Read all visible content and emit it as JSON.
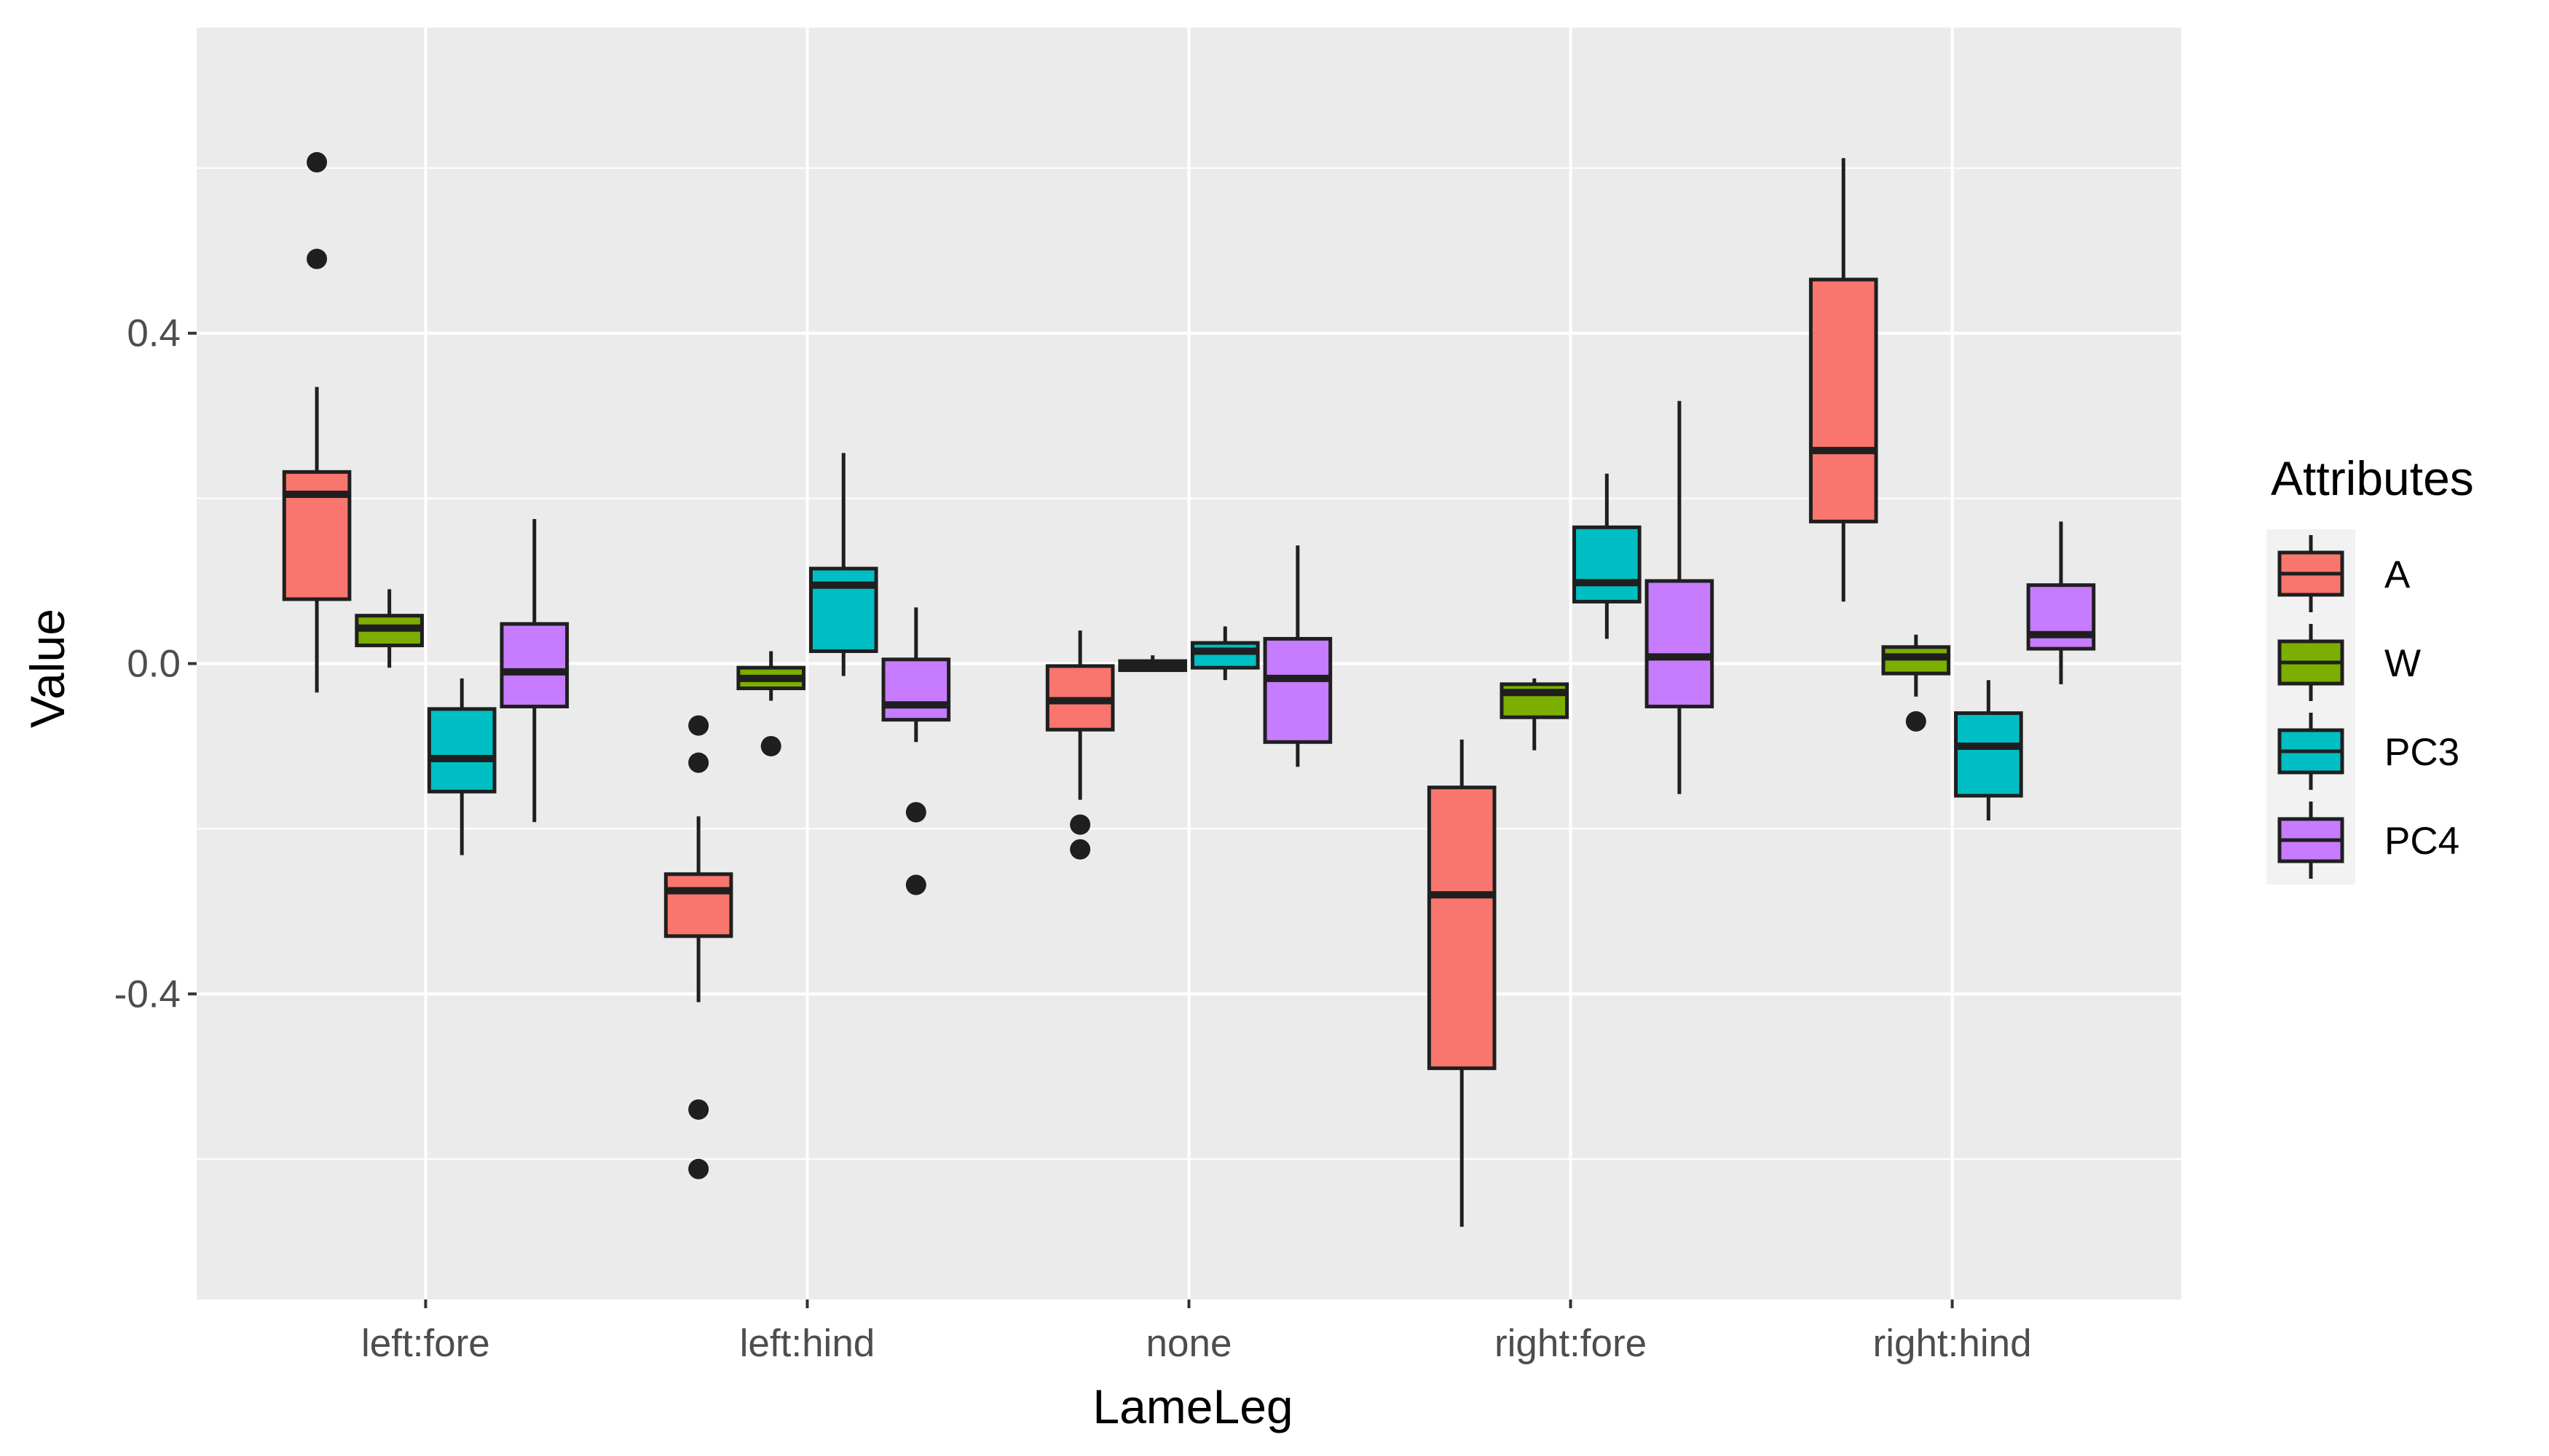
{
  "chart_data": {
    "type": "boxplot",
    "xlabel": "LameLeg",
    "ylabel": "Value",
    "categories": [
      "left:fore",
      "left:hind",
      "none",
      "right:fore",
      "right:hind"
    ],
    "y_ticks": [
      -0.4,
      0.0,
      0.4
    ],
    "y_tick_labels": [
      "-0.4",
      "0.0",
      "0.4"
    ],
    "ylim": [
      -0.77,
      0.77
    ],
    "grid": true,
    "legend": {
      "title": "Attributes",
      "position": "right",
      "entries": [
        "A",
        "W",
        "PC3",
        "PC4"
      ]
    },
    "series": [
      {
        "name": "A",
        "color": "#F8766D",
        "boxes": [
          {
            "category": "left:fore",
            "q1": 0.078,
            "median": 0.205,
            "q3": 0.232,
            "whisker_low": -0.035,
            "whisker_high": 0.335,
            "outliers": [
              0.607,
              0.49
            ]
          },
          {
            "category": "left:hind",
            "q1": -0.33,
            "median": -0.275,
            "q3": -0.255,
            "whisker_low": -0.41,
            "whisker_high": -0.185,
            "outliers": [
              -0.075,
              -0.12,
              -0.54,
              -0.612
            ]
          },
          {
            "category": "none",
            "q1": -0.08,
            "median": -0.045,
            "q3": -0.003,
            "whisker_low": -0.165,
            "whisker_high": 0.04,
            "outliers": [
              -0.195,
              -0.225
            ]
          },
          {
            "category": "right:fore",
            "q1": -0.49,
            "median": -0.28,
            "q3": -0.15,
            "whisker_low": -0.682,
            "whisker_high": -0.092,
            "outliers": []
          },
          {
            "category": "right:hind",
            "q1": 0.172,
            "median": 0.258,
            "q3": 0.465,
            "whisker_low": 0.075,
            "whisker_high": 0.612,
            "outliers": []
          }
        ]
      },
      {
        "name": "W",
        "color": "#7CAE00",
        "boxes": [
          {
            "category": "left:fore",
            "q1": 0.022,
            "median": 0.043,
            "q3": 0.058,
            "whisker_low": -0.005,
            "whisker_high": 0.09,
            "outliers": []
          },
          {
            "category": "left:hind",
            "q1": -0.03,
            "median": -0.018,
            "q3": -0.005,
            "whisker_low": -0.045,
            "whisker_high": 0.015,
            "outliers": [
              -0.1
            ]
          },
          {
            "category": "none",
            "q1": -0.008,
            "median": -0.003,
            "q3": 0.003,
            "whisker_low": -0.01,
            "whisker_high": 0.01,
            "outliers": []
          },
          {
            "category": "right:fore",
            "q1": -0.065,
            "median": -0.035,
            "q3": -0.025,
            "whisker_low": -0.105,
            "whisker_high": -0.018,
            "outliers": []
          },
          {
            "category": "right:hind",
            "q1": -0.012,
            "median": 0.008,
            "q3": 0.02,
            "whisker_low": -0.04,
            "whisker_high": 0.035,
            "outliers": [
              -0.07
            ]
          }
        ]
      },
      {
        "name": "PC3",
        "color": "#00BFC4",
        "boxes": [
          {
            "category": "left:fore",
            "q1": -0.155,
            "median": -0.115,
            "q3": -0.055,
            "whisker_low": -0.232,
            "whisker_high": -0.018,
            "outliers": []
          },
          {
            "category": "left:hind",
            "q1": 0.015,
            "median": 0.095,
            "q3": 0.115,
            "whisker_low": -0.015,
            "whisker_high": 0.255,
            "outliers": []
          },
          {
            "category": "none",
            "q1": -0.005,
            "median": 0.015,
            "q3": 0.025,
            "whisker_low": -0.02,
            "whisker_high": 0.045,
            "outliers": []
          },
          {
            "category": "right:fore",
            "q1": 0.075,
            "median": 0.098,
            "q3": 0.165,
            "whisker_low": 0.03,
            "whisker_high": 0.23,
            "outliers": []
          },
          {
            "category": "right:hind",
            "q1": -0.16,
            "median": -0.1,
            "q3": -0.06,
            "whisker_low": -0.19,
            "whisker_high": -0.02,
            "outliers": []
          }
        ]
      },
      {
        "name": "PC4",
        "color": "#C77CFF",
        "boxes": [
          {
            "category": "left:fore",
            "q1": -0.052,
            "median": -0.01,
            "q3": 0.048,
            "whisker_low": -0.192,
            "whisker_high": 0.175,
            "outliers": []
          },
          {
            "category": "left:hind",
            "q1": -0.068,
            "median": -0.05,
            "q3": 0.005,
            "whisker_low": -0.095,
            "whisker_high": 0.068,
            "outliers": [
              -0.18,
              -0.268
            ]
          },
          {
            "category": "none",
            "q1": -0.095,
            "median": -0.018,
            "q3": 0.03,
            "whisker_low": -0.125,
            "whisker_high": 0.143,
            "outliers": []
          },
          {
            "category": "right:fore",
            "q1": -0.052,
            "median": 0.008,
            "q3": 0.1,
            "whisker_low": -0.158,
            "whisker_high": 0.318,
            "outliers": []
          },
          {
            "category": "right:hind",
            "q1": 0.018,
            "median": 0.035,
            "q3": 0.095,
            "whisker_low": -0.025,
            "whisker_high": 0.172,
            "outliers": []
          }
        ]
      }
    ]
  }
}
